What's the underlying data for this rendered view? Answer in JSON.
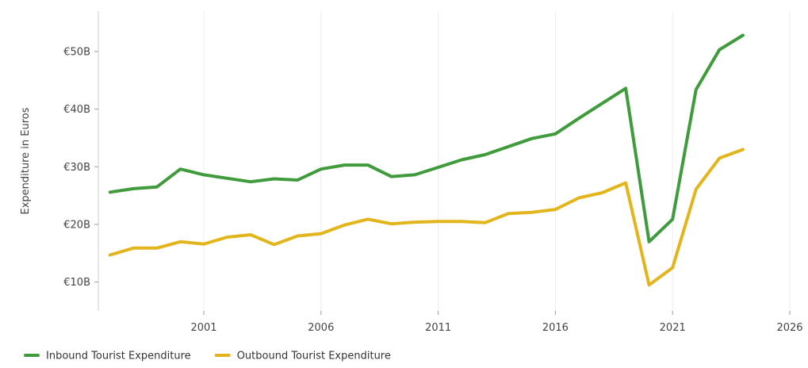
{
  "chart_data": {
    "type": "line",
    "ylabel": "Expenditure in Euros",
    "xlabel": "",
    "xlim": [
      1996.5,
      2026
    ],
    "ylim": [
      5,
      57
    ],
    "x_ticks": [
      2001,
      2006,
      2011,
      2016,
      2021,
      2026
    ],
    "x_tick_labels": [
      "2001",
      "2006",
      "2011",
      "2016",
      "2021",
      "2026"
    ],
    "y_ticks": [
      10,
      20,
      30,
      40,
      50
    ],
    "y_tick_labels": [
      "€10B",
      "€20B",
      "€30B",
      "€40B",
      "€50B"
    ],
    "grid": "vertical",
    "legend_position": "bottom-left",
    "series": [
      {
        "name": "Inbound Tourist Expenditure",
        "color": "#3f9b3c",
        "x": [
          1997,
          1998,
          1999,
          2000,
          2001,
          2002,
          2003,
          2004,
          2005,
          2006,
          2007,
          2008,
          2009,
          2010,
          2011,
          2012,
          2013,
          2014,
          2015,
          2016,
          2017,
          2018,
          2019,
          2020,
          2021,
          2022,
          2023,
          2024
        ],
        "values": [
          25.6,
          26.2,
          26.5,
          29.6,
          28.6,
          28.0,
          27.4,
          27.9,
          27.7,
          29.6,
          30.3,
          30.3,
          28.3,
          28.6,
          29.9,
          31.2,
          32.1,
          33.5,
          34.9,
          35.7,
          38.4,
          41.0,
          43.6,
          17.0,
          20.9,
          43.4,
          50.3,
          52.8
        ]
      },
      {
        "name": "Outbound Tourist Expenditure",
        "color": "#e3b51c",
        "x": [
          1997,
          1998,
          1999,
          2000,
          2001,
          2002,
          2003,
          2004,
          2005,
          2006,
          2007,
          2008,
          2009,
          2010,
          2011,
          2012,
          2013,
          2014,
          2015,
          2016,
          2017,
          2018,
          2019,
          2020,
          2021,
          2022,
          2023,
          2024
        ],
        "values": [
          14.7,
          15.9,
          15.9,
          17.0,
          16.6,
          17.8,
          18.2,
          16.5,
          18.0,
          18.4,
          19.9,
          20.9,
          20.1,
          20.4,
          20.5,
          20.5,
          20.3,
          21.9,
          22.1,
          22.6,
          24.6,
          25.5,
          27.2,
          9.5,
          12.5,
          26.1,
          31.5,
          33.0
        ]
      }
    ]
  }
}
